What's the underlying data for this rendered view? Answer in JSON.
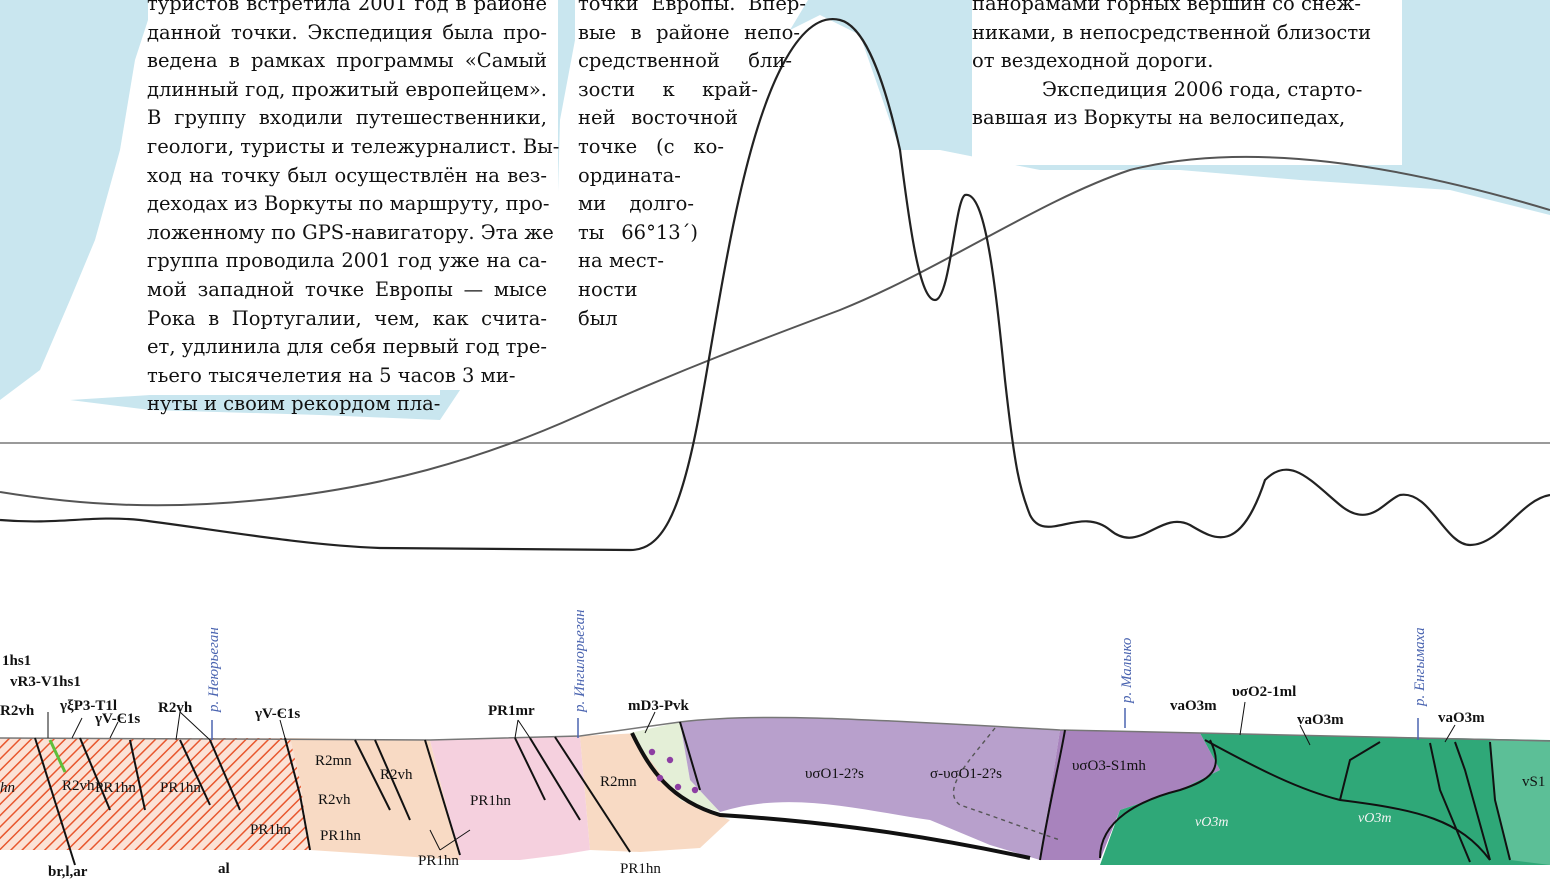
{
  "text_columns": {
    "left": [
      "туристов встретила 2001 год в районе",
      "данной точки. Экспедиция была про-",
      "ведена в рамках программы «Самый",
      "длинный год, прожитый европейцем».",
      "В группу входили путешественники,",
      "геологи, туристы и тележурналист. Вы-",
      "ход на точку был осуществлён на вез-",
      "деходах из Воркуты по маршруту, про-",
      "ложенному по GPS-навигатору. Эта же",
      "группа проводила 2001 год уже на са-",
      "мой западной точке Европы — мысе",
      "Рока в Португалии, чем, как считa-",
      "ет, удлинила для себя первый год тре-",
      "тьего тысячелетия на 5 часов 3 ми-",
      "нуты и своим рекордом пла-"
    ],
    "middle": [
      "точки Европы. Впер-",
      "вые в районе непо-",
      "средственной бли-",
      "зости к край-",
      "ней восточной",
      "точке (с ко-",
      "ордината-",
      "ми долго-",
      "ты 66°13´)",
      "на мест-",
      "ности",
      "был"
    ],
    "right": [
      "панорамами горных вершин со снеж-",
      "никами, в непосредственной близости",
      "от вездеходной дороги.",
      "Экспедиция 2006 года, старто-",
      "вавшая из Воркуты на велосипедах,"
    ]
  },
  "rivers": {
    "neyuryegan": "р. Неюрьеган",
    "ingilorlegan": "р. Ингилорьеган",
    "malyko": "р. Малыко",
    "yengymakha": "р. Енгымаха"
  },
  "units": {
    "v1hs1": "1hs1",
    "vR3V1hs1": "vR3-V1hs1",
    "gamma_xi": "γξP3-T1l",
    "R2vh_a": "R2vh",
    "gammaV_a": "γV-Є1s",
    "R2vh_b": "R2vh",
    "gammaV_b": "γV-Є1s",
    "R2vh_c": "R2vh",
    "hn_edge": "hn",
    "PR1hn_a": "PR1hn",
    "PR1hn_b": "PR1hn",
    "PR1hn_c": "PR1hn",
    "R2mn_a": "R2mn",
    "R2vh_d": "R2vh",
    "R2vh_e": "R2vh",
    "PR1hn_d": "PR1hn",
    "PR1mr": "PR1mr",
    "PR1hn_e": "PR1hn",
    "PR1hn_f": "PR1hn",
    "mD3Pvk": "mD3-Pvk",
    "R2mn_b": "R2mn",
    "PR1hn_g": "PR1hn",
    "uso12s": "υσO1-2?s",
    "s_uso12s": "σ-υσO1-2?s",
    "usO3S1mh": "υσO3-S1mh",
    "vaO3m_a": "vaO3m",
    "usO21ml": "υσO2-1ml",
    "vaO3m_b": "vaO3m",
    "vaO3m_c": "vaO3m",
    "vO3m_a": "vO3m",
    "vO3m_b": "vO3m",
    "vS1": "vS1",
    "brlar": "br,l,ar",
    "al": "al"
  },
  "colors": {
    "sky": "#c9e6ef",
    "hatch": "#e8572e",
    "hatch_bg": "#fbe2d6",
    "peach": "#f8dac4",
    "pink": "#f5d0de",
    "light_green": "#e4efd7",
    "lavender": "#b8a0cc",
    "violet": "#a883bd",
    "green": "#2fa878",
    "light_green2": "#5cbf97",
    "river_blue": "#4a64b0"
  }
}
